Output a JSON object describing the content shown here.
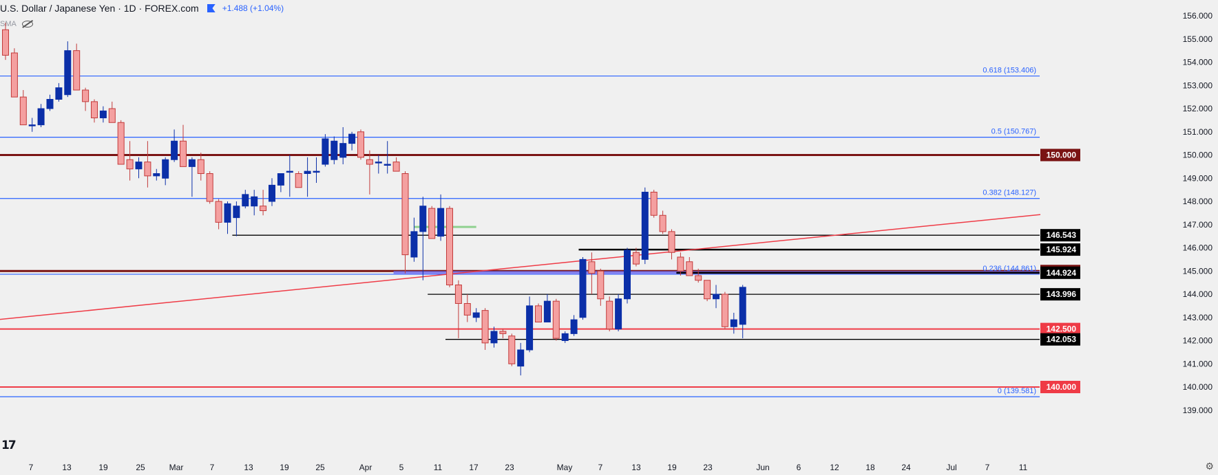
{
  "header": {
    "title": "U.S. Dollar / Japanese Yen · 1D · FOREX.com",
    "change": "+1.488 (+1.04%)",
    "indicator": "SMA",
    "flag_icon": "flag-icon",
    "visibility_icon": "eye-crossed-icon"
  },
  "colors": {
    "bull": "#0b2fa8",
    "bear": "#f4a0a0",
    "bear_border": "#c23a3a",
    "fib_line": "#2962ff",
    "maroon": "#7a1313",
    "red": "#ef3b46",
    "black": "#000000"
  },
  "chart_data": {
    "type": "candlestick",
    "symbol": "USDJPY",
    "timeframe": "1D",
    "ylim": [
      139.0,
      156.6
    ],
    "y_ticks": [
      "156.000",
      "155.000",
      "154.000",
      "153.000",
      "152.000",
      "151.000",
      "150.000",
      "149.000",
      "148.000",
      "147.000",
      "146.000",
      "145.000",
      "144.000",
      "143.000",
      "142.000",
      "141.000",
      "140.000",
      "139.000"
    ],
    "x_ticks": [
      "7",
      "13",
      "19",
      "25",
      "Mar",
      "7",
      "13",
      "19",
      "25",
      "Apr",
      "5",
      "11",
      "17",
      "23",
      "May",
      "7",
      "13",
      "19",
      "23",
      "Jun",
      "6",
      "12",
      "18",
      "24",
      "Jul",
      "7",
      "11"
    ],
    "candles": [
      {
        "o": 155.4,
        "h": 155.7,
        "l": 154.1,
        "c": 154.3
      },
      {
        "o": 154.4,
        "h": 154.6,
        "l": 152.5,
        "c": 152.5
      },
      {
        "o": 152.5,
        "h": 152.8,
        "l": 151.3,
        "c": 151.3
      },
      {
        "o": 151.3,
        "h": 151.6,
        "l": 151.0,
        "c": 151.3
      },
      {
        "o": 151.3,
        "h": 152.2,
        "l": 151.2,
        "c": 152.0
      },
      {
        "o": 152.0,
        "h": 152.6,
        "l": 151.9,
        "c": 152.4
      },
      {
        "o": 152.4,
        "h": 153.1,
        "l": 152.3,
        "c": 152.9
      },
      {
        "o": 152.6,
        "h": 154.9,
        "l": 152.5,
        "c": 154.5
      },
      {
        "o": 154.5,
        "h": 154.8,
        "l": 152.8,
        "c": 152.8
      },
      {
        "o": 152.8,
        "h": 152.9,
        "l": 151.9,
        "c": 152.3
      },
      {
        "o": 152.3,
        "h": 152.4,
        "l": 151.4,
        "c": 151.6
      },
      {
        "o": 151.6,
        "h": 152.1,
        "l": 151.4,
        "c": 151.9
      },
      {
        "o": 152.0,
        "h": 152.3,
        "l": 151.4,
        "c": 151.4
      },
      {
        "o": 151.4,
        "h": 151.5,
        "l": 149.6,
        "c": 149.6
      },
      {
        "o": 149.8,
        "h": 150.6,
        "l": 148.9,
        "c": 149.4
      },
      {
        "o": 149.4,
        "h": 149.9,
        "l": 149.0,
        "c": 149.7
      },
      {
        "o": 149.7,
        "h": 150.6,
        "l": 148.6,
        "c": 149.1
      },
      {
        "o": 149.1,
        "h": 149.4,
        "l": 148.9,
        "c": 149.2
      },
      {
        "o": 149.0,
        "h": 149.9,
        "l": 148.7,
        "c": 149.8
      },
      {
        "o": 149.8,
        "h": 151.1,
        "l": 149.7,
        "c": 150.6
      },
      {
        "o": 150.6,
        "h": 151.3,
        "l": 149.5,
        "c": 149.5
      },
      {
        "o": 149.5,
        "h": 149.9,
        "l": 148.2,
        "c": 149.8
      },
      {
        "o": 149.8,
        "h": 150.1,
        "l": 148.9,
        "c": 149.2
      },
      {
        "o": 149.2,
        "h": 149.3,
        "l": 147.9,
        "c": 148.0
      },
      {
        "o": 148.0,
        "h": 148.1,
        "l": 146.8,
        "c": 147.1
      },
      {
        "o": 147.1,
        "h": 148.0,
        "l": 146.6,
        "c": 147.9
      },
      {
        "o": 147.3,
        "h": 148.0,
        "l": 146.5,
        "c": 147.8
      },
      {
        "o": 147.8,
        "h": 148.5,
        "l": 147.7,
        "c": 148.3
      },
      {
        "o": 147.8,
        "h": 148.5,
        "l": 147.4,
        "c": 148.2
      },
      {
        "o": 147.8,
        "h": 148.5,
        "l": 147.4,
        "c": 147.6
      },
      {
        "o": 148.0,
        "h": 149.0,
        "l": 147.8,
        "c": 148.7
      },
      {
        "o": 148.7,
        "h": 149.2,
        "l": 148.4,
        "c": 149.2
      },
      {
        "o": 149.3,
        "h": 150.0,
        "l": 148.2,
        "c": 149.3
      },
      {
        "o": 149.2,
        "h": 149.3,
        "l": 148.6,
        "c": 148.6
      },
      {
        "o": 149.2,
        "h": 149.9,
        "l": 148.2,
        "c": 149.3
      },
      {
        "o": 149.3,
        "h": 149.9,
        "l": 148.8,
        "c": 149.3
      },
      {
        "o": 149.6,
        "h": 150.9,
        "l": 149.5,
        "c": 150.7
      },
      {
        "o": 149.8,
        "h": 150.8,
        "l": 149.6,
        "c": 150.6
      },
      {
        "o": 149.9,
        "h": 151.2,
        "l": 149.6,
        "c": 150.5
      },
      {
        "o": 150.5,
        "h": 151.0,
        "l": 150.2,
        "c": 150.9
      },
      {
        "o": 151.0,
        "h": 151.1,
        "l": 149.8,
        "c": 149.9
      },
      {
        "o": 149.8,
        "h": 150.2,
        "l": 148.3,
        "c": 149.6
      },
      {
        "o": 149.7,
        "h": 150.0,
        "l": 149.2,
        "c": 149.7
      },
      {
        "o": 149.6,
        "h": 150.6,
        "l": 149.2,
        "c": 149.6
      },
      {
        "o": 149.7,
        "h": 149.9,
        "l": 149.3,
        "c": 149.3
      },
      {
        "o": 149.2,
        "h": 149.3,
        "l": 144.9,
        "c": 145.7
      },
      {
        "o": 145.6,
        "h": 147.3,
        "l": 145.4,
        "c": 146.7
      },
      {
        "o": 146.7,
        "h": 148.2,
        "l": 144.6,
        "c": 147.8
      },
      {
        "o": 147.7,
        "h": 147.8,
        "l": 146.4,
        "c": 146.4
      },
      {
        "o": 146.5,
        "h": 148.3,
        "l": 146.3,
        "c": 147.7
      },
      {
        "o": 147.7,
        "h": 147.8,
        "l": 144.3,
        "c": 144.4
      },
      {
        "o": 144.4,
        "h": 144.6,
        "l": 142.1,
        "c": 143.6
      },
      {
        "o": 143.6,
        "h": 144.0,
        "l": 142.8,
        "c": 143.1
      },
      {
        "o": 143.0,
        "h": 143.4,
        "l": 142.8,
        "c": 143.2
      },
      {
        "o": 143.3,
        "h": 143.4,
        "l": 141.6,
        "c": 141.9
      },
      {
        "o": 141.9,
        "h": 142.6,
        "l": 141.7,
        "c": 142.4
      },
      {
        "o": 142.4,
        "h": 142.5,
        "l": 142.1,
        "c": 142.3
      },
      {
        "o": 142.2,
        "h": 142.3,
        "l": 140.9,
        "c": 141.0
      },
      {
        "o": 140.9,
        "h": 141.9,
        "l": 140.5,
        "c": 141.6
      },
      {
        "o": 141.6,
        "h": 143.9,
        "l": 141.5,
        "c": 143.5
      },
      {
        "o": 143.5,
        "h": 143.6,
        "l": 142.8,
        "c": 142.8
      },
      {
        "o": 142.8,
        "h": 144.0,
        "l": 142.8,
        "c": 143.7
      },
      {
        "o": 143.7,
        "h": 143.8,
        "l": 142.0,
        "c": 142.1
      },
      {
        "o": 142.0,
        "h": 142.4,
        "l": 141.9,
        "c": 142.3
      },
      {
        "o": 142.3,
        "h": 143.1,
        "l": 142.2,
        "c": 142.9
      },
      {
        "o": 143.0,
        "h": 145.6,
        "l": 142.9,
        "c": 145.5
      },
      {
        "o": 145.4,
        "h": 145.8,
        "l": 144.0,
        "c": 144.9
      },
      {
        "o": 145.0,
        "h": 145.1,
        "l": 143.5,
        "c": 143.8
      },
      {
        "o": 143.7,
        "h": 143.9,
        "l": 142.4,
        "c": 142.5
      },
      {
        "o": 142.5,
        "h": 144.0,
        "l": 142.4,
        "c": 143.8
      },
      {
        "o": 143.8,
        "h": 146.0,
        "l": 143.6,
        "c": 145.9
      },
      {
        "o": 145.8,
        "h": 146.0,
        "l": 145.2,
        "c": 145.3
      },
      {
        "o": 145.5,
        "h": 148.6,
        "l": 145.3,
        "c": 148.4
      },
      {
        "o": 148.4,
        "h": 148.5,
        "l": 147.3,
        "c": 147.4
      },
      {
        "o": 147.4,
        "h": 147.6,
        "l": 146.6,
        "c": 146.7
      },
      {
        "o": 146.7,
        "h": 146.8,
        "l": 145.5,
        "c": 145.8
      },
      {
        "o": 145.6,
        "h": 145.8,
        "l": 144.8,
        "c": 145.0
      },
      {
        "o": 145.4,
        "h": 145.6,
        "l": 144.8,
        "c": 144.8
      },
      {
        "o": 144.8,
        "h": 145.1,
        "l": 144.5,
        "c": 144.6
      },
      {
        "o": 144.6,
        "h": 144.6,
        "l": 143.7,
        "c": 143.8
      },
      {
        "o": 143.8,
        "h": 144.4,
        "l": 143.4,
        "c": 144.0
      },
      {
        "o": 144.0,
        "h": 144.1,
        "l": 142.5,
        "c": 142.6
      },
      {
        "o": 142.6,
        "h": 143.2,
        "l": 142.3,
        "c": 142.9
      },
      {
        "o": 142.7,
        "h": 144.4,
        "l": 142.1,
        "c": 144.3
      }
    ],
    "horizontal_levels": [
      {
        "price": 153.406,
        "style": "fib",
        "text": "0.618 (153.406)"
      },
      {
        "price": 150.767,
        "style": "fib",
        "text": "0.5 (150.767)"
      },
      {
        "price": 150.0,
        "style": "maroon",
        "tag": "150.000"
      },
      {
        "price": 148.127,
        "style": "fib",
        "text": "0.382 (148.127)"
      },
      {
        "price": 145.0,
        "style": "maroon",
        "tag": "145.000"
      },
      {
        "price": 144.861,
        "style": "fib",
        "text": "0.236 (144.861)"
      },
      {
        "price": 142.5,
        "style": "red",
        "tag": "142.500"
      },
      {
        "price": 140.0,
        "style": "red",
        "tag": "140.000"
      },
      {
        "price": 139.581,
        "style": "fib",
        "text": "0 (139.581)"
      }
    ],
    "partial_levels": [
      {
        "price": 146.543,
        "from_candle": 26,
        "tag": "146.543"
      },
      {
        "price": 145.924,
        "from_candle": 65,
        "tag": "145.924"
      },
      {
        "price": 144.924,
        "from_candle": 76,
        "tag": "144.924"
      },
      {
        "price": 143.996,
        "from_candle": 48,
        "tag": "143.996"
      },
      {
        "price": 142.053,
        "from_candle": 50,
        "tag": "142.053"
      }
    ],
    "green_segment": {
      "price": 146.9,
      "from_candle": 46,
      "to_candle": 53
    },
    "blue_zone": {
      "top": 145.0,
      "bottom": 144.861,
      "from_candle": 44
    },
    "trendline": {
      "x0_candle": -1,
      "y0": 142.9,
      "x1_candle": 126,
      "y1": 147.8
    }
  }
}
